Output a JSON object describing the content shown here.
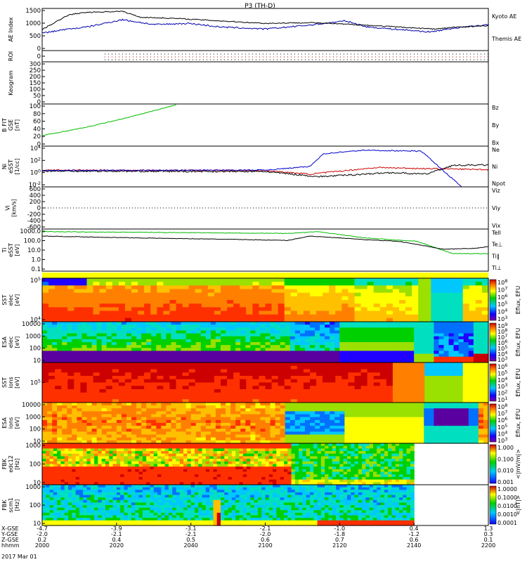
{
  "title": "P3 (TH-D)",
  "date_label": "2017 Mar 01",
  "colors": {
    "kyoto": "#0000aa",
    "themis": "#000000",
    "red": "#cc0000",
    "green": "#00bb00",
    "blue": "#0000cc"
  },
  "chart_data": {
    "type": "line",
    "x_axis": {
      "row_labels": [
        "X-GSE",
        "Y-GSE",
        "Z-GSE",
        "hhmm"
      ],
      "ticks": [
        {
          "time": "2000",
          "x_gse": "-4.7",
          "y_gse": "-2.0",
          "z_gse": "0.2"
        },
        {
          "time": "2020",
          "x_gse": "-3.9",
          "y_gse": "-2.1",
          "z_gse": "0.4"
        },
        {
          "time": "2040",
          "x_gse": "-3.1",
          "y_gse": "-2.1",
          "z_gse": "0.5"
        },
        {
          "time": "2100",
          "x_gse": "-2.1",
          "y_gse": "-2.0",
          "z_gse": "0.6"
        },
        {
          "time": "2120",
          "x_gse": "-1.0",
          "y_gse": "-1.8",
          "z_gse": "0.7"
        },
        {
          "time": "2140",
          "x_gse": "0.4",
          "y_gse": "-1.2",
          "z_gse": "0.6"
        },
        {
          "time": "2200",
          "x_gse": "1.3",
          "y_gse": "0.3",
          "z_gse": "0.1"
        }
      ]
    },
    "panels": [
      {
        "id": "ae",
        "ylabel": "AE Index",
        "yticks": [
          "1500",
          "1000",
          "500",
          "0"
        ],
        "legend": [
          {
            "name": "Kyoto AE",
            "color": "#0000aa"
          },
          {
            "name": "Themis AE",
            "color": "#000000"
          }
        ]
      },
      {
        "id": "roi",
        "ylabel": "ROI",
        "yticks": [
          "0"
        ]
      },
      {
        "id": "keogram",
        "ylabel": "Keogram",
        "yticks": [
          "300",
          "250",
          "200",
          "150",
          "100",
          "50",
          "0"
        ]
      },
      {
        "id": "bfit",
        "ylabel": [
          "B FIT",
          "GSE",
          "[nT]"
        ],
        "yticks": [
          "100",
          "80",
          "60",
          "40",
          "20",
          "0"
        ],
        "legend": [
          {
            "name": "Bz",
            "color": "#cc0000"
          },
          {
            "name": "By",
            "color": "#00bb00"
          },
          {
            "name": "Bx",
            "color": "#0000cc"
          }
        ]
      },
      {
        "id": "ni",
        "ylabel": [
          "Ni",
          "eSST",
          "[1/cc]"
        ],
        "yticks": [
          "10^4",
          "10^2",
          "10^0",
          "10^-2"
        ],
        "legend": [
          {
            "name": "Ne",
            "color": "#cc0000"
          },
          {
            "name": "Ni",
            "color": "#000000"
          },
          {
            "name": "Npot",
            "color": "#0000cc"
          }
        ]
      },
      {
        "id": "vi",
        "ylabel": [
          "Vi",
          "[km/s]"
        ],
        "yticks": [
          "600",
          "400",
          "200",
          "0",
          "-200",
          "-400",
          "-600"
        ],
        "legend": [
          {
            "name": "Viz",
            "color": "#cc0000"
          },
          {
            "name": "Viy",
            "color": "#00bb00"
          },
          {
            "name": "Vix",
            "color": "#0000cc"
          }
        ]
      },
      {
        "id": "ti",
        "ylabel": [
          "Ti",
          "eSST",
          "[eV]"
        ],
        "yticks": [
          "1000.0",
          "100.0",
          "10.0",
          "1.0",
          "0.1"
        ],
        "legend": [
          {
            "name": "Tell",
            "color": "#000000"
          },
          {
            "name": "Te⊥",
            "color": "#cc0000"
          },
          {
            "name": "Ti‖",
            "color": "#00bb00"
          },
          {
            "name": "Ti⊥",
            "color": "#0000cc"
          }
        ]
      },
      {
        "id": "sst_e",
        "ylabel": [
          "SST",
          "elec",
          "[eV]"
        ],
        "yticks": [
          "10^5",
          "10^4"
        ],
        "cbar": {
          "label": "Eflux, EFU",
          "ticks": [
            "10^8",
            "10^7",
            "10^6",
            "10^5",
            "10^4",
            "10^3"
          ]
        }
      },
      {
        "id": "esa_e",
        "ylabel": [
          "ESA",
          "elec",
          "[eV]"
        ],
        "yticks": [
          "10000",
          "1000",
          "100",
          "10"
        ],
        "cbar": {
          "label": "Eflux, EFU",
          "ticks": [
            "10^9",
            "10^8",
            "10^7",
            "10^6",
            "10^5",
            "10^4",
            "10^3"
          ]
        }
      },
      {
        "id": "sst_i",
        "ylabel": [
          "SST",
          "ions",
          "[eV]"
        ],
        "yticks": [
          "10^5"
        ],
        "cbar": {
          "label": "Eflux, EFU",
          "ticks": [
            "10^6",
            "10^5",
            "10^4",
            "10^3",
            "10^2",
            "10^1"
          ]
        }
      },
      {
        "id": "esa_i",
        "ylabel": [
          "ESA",
          "ions",
          "[eV]"
        ],
        "yticks": [
          "10000",
          "1000",
          "100",
          "10"
        ],
        "cbar": {
          "label": "Eflux, EFU",
          "ticks": [
            "10^8",
            "10^7",
            "10^6",
            "10^5",
            "10^4",
            "10^3"
          ]
        }
      },
      {
        "id": "fbk_e",
        "ylabel": [
          "FBK",
          "edc12",
          "[Hz]"
        ],
        "yticks": [
          "1000",
          "100",
          "10"
        ],
        "cbar": {
          "label": "<|mV/m|>",
          "ticks": [
            "1.000",
            "0.100",
            "0.010",
            "0.001"
          ]
        }
      },
      {
        "id": "fbk_b",
        "ylabel": [
          "FBK",
          "scm1",
          "[Hz]"
        ],
        "yticks": [
          "1000",
          "100",
          "10"
        ],
        "cbar": {
          "label": "<|nT|>",
          "ticks": [
            "1.0000",
            "0.1000",
            "0.0100",
            "0.0010",
            "0.0001"
          ]
        }
      }
    ],
    "series_trends": {
      "kyoto_ae": [
        [
          0,
          650
        ],
        [
          5,
          800
        ],
        [
          10,
          900
        ],
        [
          18,
          1200
        ],
        [
          25,
          1000
        ],
        [
          33,
          1050
        ],
        [
          40,
          900
        ],
        [
          50,
          820
        ],
        [
          60,
          980
        ],
        [
          68,
          1150
        ],
        [
          73,
          900
        ],
        [
          80,
          800
        ],
        [
          87,
          700
        ],
        [
          92,
          850
        ],
        [
          100,
          1000
        ]
      ],
      "themis_ae": [
        [
          0,
          800
        ],
        [
          6,
          1400
        ],
        [
          10,
          1500
        ],
        [
          18,
          1540
        ],
        [
          22,
          1300
        ],
        [
          30,
          1250
        ],
        [
          40,
          1150
        ],
        [
          50,
          1050
        ],
        [
          60,
          1080
        ],
        [
          70,
          1000
        ],
        [
          80,
          900
        ],
        [
          88,
          820
        ],
        [
          93,
          900
        ],
        [
          100,
          950
        ]
      ],
      "bfit_by": [
        [
          0,
          25
        ],
        [
          10,
          45
        ],
        [
          20,
          70
        ],
        [
          30,
          98
        ]
      ],
      "ni_npot_log": [
        [
          0,
          0.2
        ],
        [
          50,
          0.3
        ],
        [
          60,
          1.0
        ],
        [
          63,
          3.5
        ],
        [
          72,
          4.2
        ],
        [
          85,
          4.0
        ],
        [
          94,
          -3.0
        ]
      ],
      "ni_ne_log": [
        [
          0,
          0.3
        ],
        [
          50,
          0.2
        ],
        [
          60,
          -0.5
        ],
        [
          75,
          0.8
        ],
        [
          85,
          0.6
        ],
        [
          100,
          0.4
        ]
      ],
      "ni_ni_log": [
        [
          0,
          0.1
        ],
        [
          50,
          0.0
        ],
        [
          62,
          -1.0
        ],
        [
          78,
          -0.2
        ],
        [
          86,
          -0.5
        ],
        [
          92,
          1.2
        ],
        [
          100,
          1.3
        ]
      ],
      "ti_tell_log": [
        [
          0,
          2.8
        ],
        [
          20,
          2.6
        ],
        [
          45,
          2.4
        ],
        [
          55,
          2.3
        ],
        [
          60,
          2.8
        ],
        [
          72,
          2.4
        ],
        [
          80,
          2.2
        ],
        [
          90,
          1.3
        ],
        [
          97,
          1.4
        ],
        [
          100,
          1.6
        ]
      ],
      "ti_green_log": [
        [
          0,
          3.3
        ],
        [
          30,
          3.2
        ],
        [
          55,
          3.1
        ],
        [
          62,
          3.3
        ],
        [
          72,
          2.6
        ],
        [
          84,
          2.2
        ],
        [
          92,
          0.8
        ],
        [
          100,
          0.8
        ]
      ]
    }
  }
}
